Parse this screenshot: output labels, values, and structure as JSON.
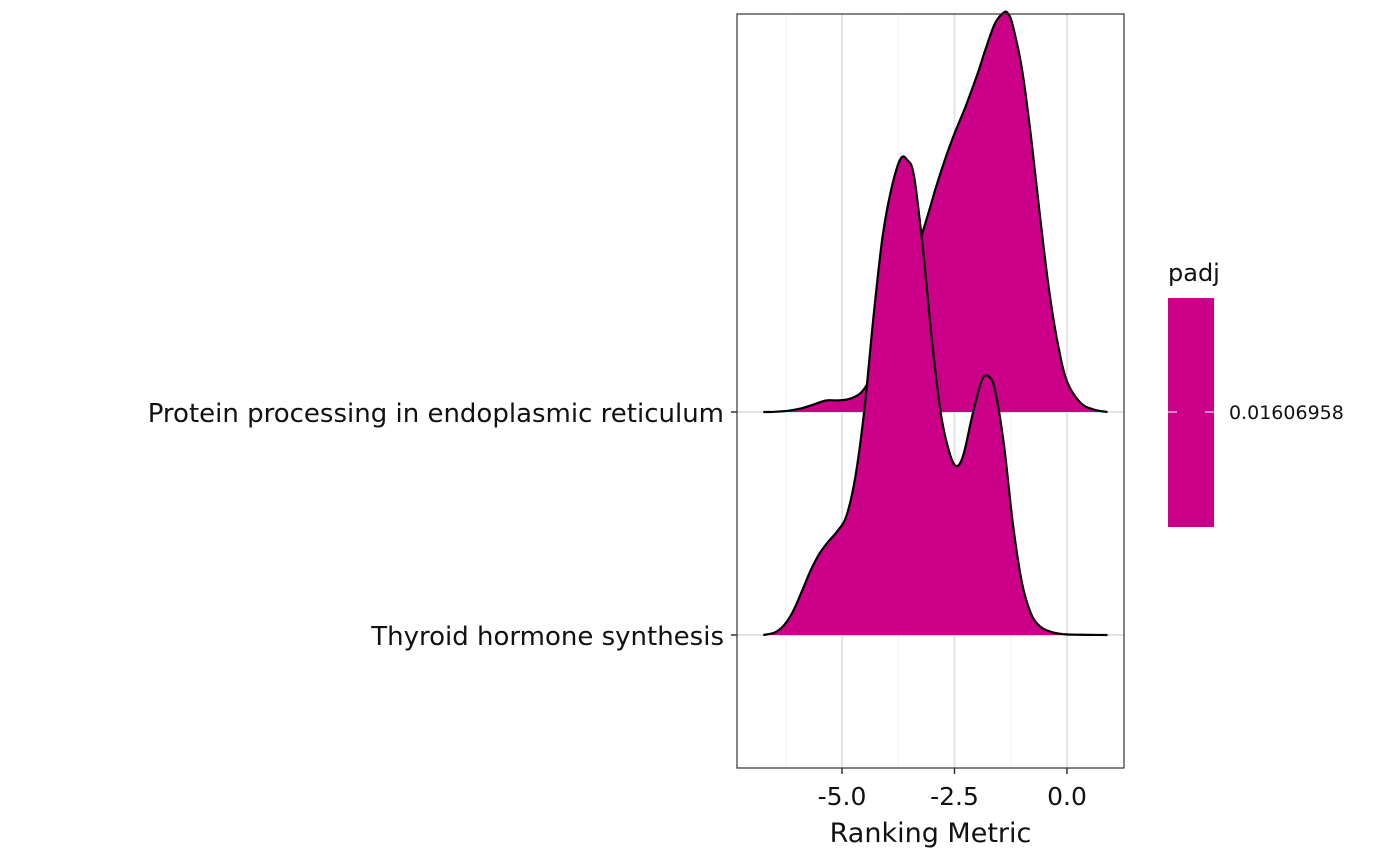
{
  "chart_data": {
    "type": "ridgeline",
    "xlabel": "Ranking Metric",
    "ylabel": "",
    "title": "",
    "xlim": [
      -7.1,
      1.3
    ],
    "x_ticks": [
      -5.0,
      -2.5,
      0.0
    ],
    "x_tick_labels": [
      "-5.0",
      "-2.5",
      "0.0"
    ],
    "grid": true,
    "fill_color": "#CC0088",
    "line_color": "#000000",
    "categories": [
      "Protein processing in endoplasmic reticulum",
      "Thyroid hormone synthesis"
    ],
    "series": [
      {
        "name": "Protein processing in endoplasmic reticulum",
        "x": [
          -6.75,
          -6.5,
          -6.2,
          -5.9,
          -5.6,
          -5.35,
          -5.1,
          -4.85,
          -4.6,
          -4.4,
          -4.2,
          -4.0,
          -3.8,
          -3.6,
          -3.35,
          -3.1,
          -2.9,
          -2.7,
          -2.5,
          -2.25,
          -2.0,
          -1.8,
          -1.6,
          -1.4,
          -1.3,
          -1.2,
          -1.0,
          -0.8,
          -0.6,
          -0.4,
          -0.2,
          0.0,
          0.3,
          0.6,
          0.9
        ],
        "density": [
          0.0,
          0.004,
          0.02,
          0.06,
          0.13,
          0.19,
          0.19,
          0.21,
          0.3,
          0.5,
          0.8,
          1.15,
          1.55,
          2.0,
          2.6,
          3.2,
          3.7,
          4.15,
          4.55,
          5.0,
          5.5,
          5.95,
          6.35,
          6.53,
          6.5,
          6.3,
          5.6,
          4.5,
          3.2,
          2.0,
          1.1,
          0.5,
          0.15,
          0.04,
          0.0
        ]
      },
      {
        "name": "Thyroid hormone synthesis",
        "x": [
          -6.75,
          -6.5,
          -6.3,
          -6.1,
          -5.9,
          -5.7,
          -5.5,
          -5.3,
          -5.1,
          -4.9,
          -4.7,
          -4.5,
          -4.3,
          -4.1,
          -3.9,
          -3.7,
          -3.55,
          -3.4,
          -3.2,
          -3.0,
          -2.8,
          -2.6,
          -2.45,
          -2.3,
          -2.1,
          -1.9,
          -1.75,
          -1.6,
          -1.4,
          -1.2,
          -1.0,
          -0.8,
          -0.6,
          -0.35,
          -0.1,
          0.2,
          0.5,
          0.9
        ],
        "density": [
          0.0,
          0.04,
          0.15,
          0.37,
          0.7,
          1.05,
          1.33,
          1.53,
          1.7,
          1.95,
          2.6,
          3.7,
          5.2,
          6.5,
          7.3,
          7.78,
          7.76,
          7.5,
          6.3,
          4.8,
          3.6,
          2.95,
          2.76,
          2.95,
          3.6,
          4.15,
          4.23,
          4.0,
          3.1,
          1.8,
          0.85,
          0.35,
          0.14,
          0.05,
          0.015,
          0.005,
          0.002,
          0.0
        ]
      }
    ],
    "legend": {
      "title": "padj",
      "label": "0.01606958",
      "position": "right"
    }
  }
}
